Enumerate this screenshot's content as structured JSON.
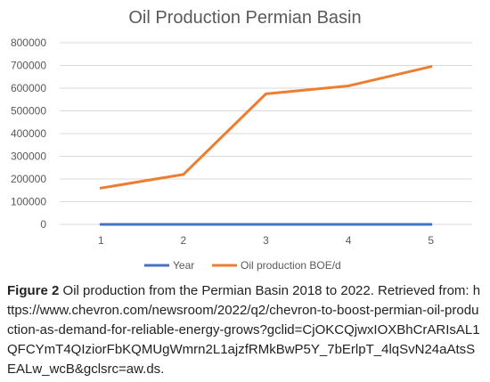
{
  "chart_data": {
    "type": "line",
    "title": "Oil Production Permian Basin",
    "xlabel": "",
    "ylabel": "",
    "categories": [
      "1",
      "2",
      "3",
      "4",
      "5"
    ],
    "y_ticks": [
      "0",
      "100000",
      "200000",
      "300000",
      "400000",
      "500000",
      "600000",
      "700000",
      "800000"
    ],
    "ylim": [
      0,
      800000
    ],
    "grid": true,
    "legend_position": "bottom",
    "series": [
      {
        "name": "Year",
        "values": [
          1,
          2,
          3,
          4,
          5
        ],
        "color": "#4472C4"
      },
      {
        "name": "Oil production BOE/d",
        "values": [
          160000,
          220000,
          575000,
          610000,
          695000
        ],
        "color": "#ED7D31"
      }
    ]
  },
  "caption": {
    "label": "Figure 2",
    "text": " Oil production from the Permian Basin 2018 to 2022. Retrieved from: https://www.chevron.com/newsroom/2022/q2/chevron-to-boost-permian-oil-production-as-demand-for-reliable-energy-grows?gclid=CjOKCQjwxIOXBhCrARIsAL1QFCYmT4QIziorFbKQMUgWmrn2L1ajzfRMkBwP5Y_7bErlpT_4lqSvN24aAtsSEALw_wcB&gclsrc=aw.ds."
  }
}
